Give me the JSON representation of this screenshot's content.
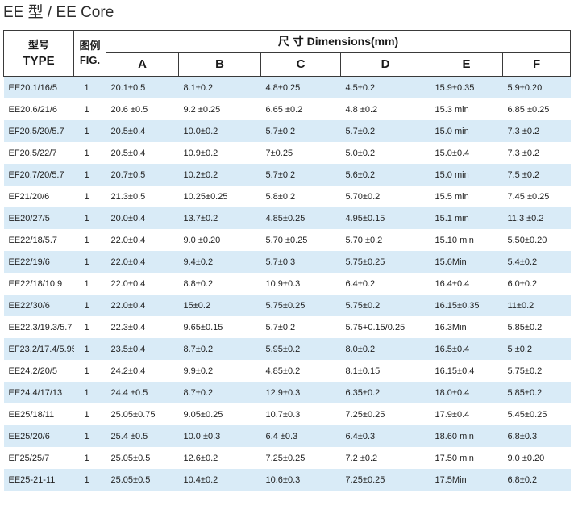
{
  "title": "EE 型 / EE Core",
  "header": {
    "type_cn": "型号",
    "type_en": "TYPE",
    "fig_cn": "图例",
    "fig_en": "FIG.",
    "dimensions": "尺 寸 Dimensions(mm)",
    "columns": [
      "A",
      "B",
      "C",
      "D",
      "E",
      "F"
    ]
  },
  "rows": [
    {
      "type": "EE20.1/16/5",
      "fig": "1",
      "a": "20.1±0.5",
      "b": "8.1±0.2",
      "c": "4.8±0.25",
      "d": "4.5±0.2",
      "e": "15.9±0.35",
      "f": "5.9±0.20"
    },
    {
      "type": "EE20.6/21/6",
      "fig": "1",
      "a": "20.6 ±0.5",
      "b": "9.2 ±0.25",
      "c": "6.65 ±0.2",
      "d": "4.8 ±0.2",
      "e": "15.3 min",
      "f": "6.85 ±0.25"
    },
    {
      "type": "EF20.5/20/5.7",
      "fig": "1",
      "a": "20.5±0.4",
      "b": "10.0±0.2",
      "c": "5.7±0.2",
      "d": "5.7±0.2",
      "e": "15.0 min",
      "f": "7.3 ±0.2"
    },
    {
      "type": "EF20.5/22/7",
      "fig": "1",
      "a": "20.5±0.4",
      "b": "10.9±0.2",
      "c": "7±0.25",
      "d": "5.0±0.2",
      "e": "15.0±0.4",
      "f": "7.3 ±0.2"
    },
    {
      "type": "EF20.7/20/5.7",
      "fig": "1",
      "a": "20.7±0.5",
      "b": "10.2±0.2",
      "c": "5.7±0.2",
      "d": "5.6±0.2",
      "e": "15.0 min",
      "f": "7.5 ±0.2"
    },
    {
      "type": "EF21/20/6",
      "fig": "1",
      "a": "21.3±0.5",
      "b": "10.25±0.25",
      "c": "5.8±0.2",
      "d": "5.70±0.2",
      "e": "15.5  min",
      "f": "7.45 ±0.25"
    },
    {
      "type": "EE20/27/5",
      "fig": "1",
      "a": "20.0±0.4",
      "b": "13.7±0.2",
      "c": "4.85±0.25",
      "d": "4.95±0.15",
      "e": "15.1 min",
      "f": "11.3 ±0.2"
    },
    {
      "type": "EE22/18/5.7",
      "fig": "1",
      "a": "22.0±0.4",
      "b": "9.0 ±0.20",
      "c": "5.70 ±0.25",
      "d": "5.70 ±0.2",
      "e": "15.10  min",
      "f": "5.50±0.20"
    },
    {
      "type": "EE22/19/6",
      "fig": "1",
      "a": "22.0±0.4",
      "b": "9.4±0.2",
      "c": "5.7±0.3",
      "d": "5.75±0.25",
      "e": "15.6Min",
      "f": "5.4±0.2"
    },
    {
      "type": "EE22/18/10.9",
      "fig": "1",
      "a": "22.0±0.4",
      "b": "8.8±0.2",
      "c": "10.9±0.3",
      "d": "6.4±0.2",
      "e": "16.4±0.4",
      "f": "6.0±0.2"
    },
    {
      "type": "EE22/30/6",
      "fig": "1",
      "a": "22.0±0.4",
      "b": "15±0.2",
      "c": "5.75±0.25",
      "d": "5.75±0.2",
      "e": "16.15±0.35",
      "f": "11±0.2"
    },
    {
      "type": "EE22.3/19.3/5.7",
      "fig": "1",
      "a": "22.3±0.4",
      "b": "9.65±0.15",
      "c": "5.7±0.2",
      "d": "5.75+0.15/0.25",
      "e": "16.3Min",
      "f": "5.85±0.2"
    },
    {
      "type": "EF23.2/17.4/5.95",
      "fig": "1",
      "a": "23.5±0.4",
      "b": "8.7±0.2",
      "c": "5.95±0.2",
      "d": "8.0±0.2",
      "e": "16.5±0.4",
      "f": "5 ±0.2"
    },
    {
      "type": "EE24.2/20/5",
      "fig": "1",
      "a": "24.2±0.4",
      "b": "9.9±0.2",
      "c": "4.85±0.2",
      "d": "8.1±0.15",
      "e": "16.15±0.4",
      "f": "5.75±0.2"
    },
    {
      "type": "EE24.4/17/13",
      "fig": "1",
      "a": "24.4 ±0.5",
      "b": "8.7±0.2",
      "c": "12.9±0.3",
      "d": "6.35±0.2",
      "e": "18.0±0.4",
      "f": "5.85±0.2"
    },
    {
      "type": "EE25/18/11",
      "fig": "1",
      "a": "25.05±0.75",
      "b": "9.05±0.25",
      "c": "10.7±0.3",
      "d": "7.25±0.25",
      "e": "17.9±0.4",
      "f": "5.45±0.25"
    },
    {
      "type": "EE25/20/6",
      "fig": "1",
      "a": "25.4 ±0.5",
      "b": "10.0 ±0.3",
      "c": "6.4 ±0.3",
      "d": "6.4±0.3",
      "e": "18.60 min",
      "f": "6.8±0.3"
    },
    {
      "type": "EF25/25/7",
      "fig": "1",
      "a": "25.05±0.5",
      "b": "12.6±0.2",
      "c": "7.25±0.25",
      "d": "7.2 ±0.2",
      "e": "17.50 min",
      "f": "9.0 ±0.20"
    },
    {
      "type": "EE25-21-11",
      "fig": "1",
      "a": "25.05±0.5",
      "b": "10.4±0.2",
      "c": "10.6±0.3",
      "d": "7.25±0.25",
      "e": "17.5Min",
      "f": "6.8±0.2"
    }
  ],
  "colors": {
    "stripe": "#d9ebf7",
    "border": "#3a3a3a"
  }
}
